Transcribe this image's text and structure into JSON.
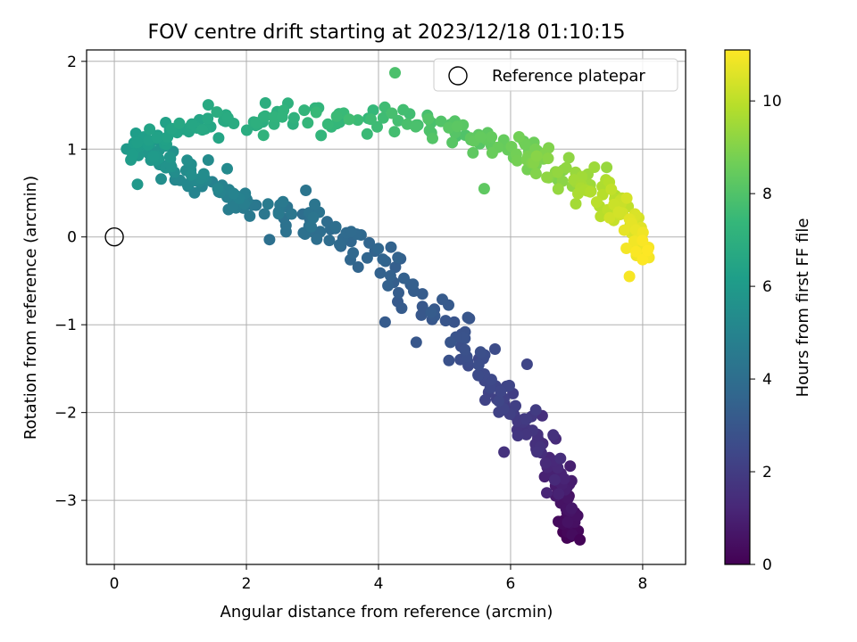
{
  "chart_data": {
    "type": "scatter",
    "title": "FOV centre drift starting at 2023/12/18 01:10:15",
    "xlabel": "Angular distance from reference (arcmin)",
    "ylabel": "Rotation from reference (arcmin)",
    "xlim": [
      -0.42,
      8.65
    ],
    "ylim": [
      -3.73,
      2.13
    ],
    "xticks": [
      0,
      2,
      4,
      6,
      8
    ],
    "xtick_labels": [
      "0",
      "2",
      "4",
      "6",
      "8"
    ],
    "yticks": [
      -3,
      -2,
      -1,
      0,
      1,
      2
    ],
    "ytick_labels": [
      "−3",
      "−2",
      "−1",
      "0",
      "1",
      "2"
    ],
    "grid": true,
    "legend": {
      "placement": "top-right",
      "entries": [
        "Reference platepar"
      ]
    },
    "reference_point": {
      "x": 0,
      "y": 0,
      "label": "Reference platepar"
    },
    "colorbar": {
      "label": "Hours from first FF file",
      "range": [
        0,
        11.1
      ],
      "ticks": [
        0,
        2,
        4,
        6,
        8,
        10
      ],
      "tick_labels": [
        "0",
        "2",
        "4",
        "6",
        "8",
        "10"
      ],
      "colormap": "viridis"
    },
    "colormap_stops": [
      "#440154",
      "#482878",
      "#3e4989",
      "#31688e",
      "#26828e",
      "#1f9e89",
      "#35b779",
      "#6ece58",
      "#b5de2b",
      "#fde725"
    ],
    "path": [
      {
        "h": 0.0,
        "x": 6.88,
        "y": -3.45,
        "sx": 0.1,
        "sy": 0.06
      },
      {
        "h": 0.6,
        "x": 6.9,
        "y": -3.05,
        "sx": 0.13,
        "sy": 0.18
      },
      {
        "h": 1.3,
        "x": 6.6,
        "y": -2.55,
        "sx": 0.18,
        "sy": 0.2
      },
      {
        "h": 2.0,
        "x": 6.1,
        "y": -2.0,
        "sx": 0.2,
        "sy": 0.15
      },
      {
        "h": 2.6,
        "x": 5.5,
        "y": -1.45,
        "sx": 0.24,
        "sy": 0.18
      },
      {
        "h": 3.2,
        "x": 4.7,
        "y": -0.7,
        "sx": 0.3,
        "sy": 0.2
      },
      {
        "h": 3.8,
        "x": 3.5,
        "y": 0.0,
        "sx": 0.3,
        "sy": 0.12
      },
      {
        "h": 4.4,
        "x": 2.5,
        "y": 0.3,
        "sx": 0.4,
        "sy": 0.12
      },
      {
        "h": 5.0,
        "x": 1.5,
        "y": 0.55,
        "sx": 0.35,
        "sy": 0.12
      },
      {
        "h": 5.6,
        "x": 0.8,
        "y": 0.85,
        "sx": 0.25,
        "sy": 0.12
      },
      {
        "h": 6.1,
        "x": 0.35,
        "y": 1.05,
        "sx": 0.2,
        "sy": 0.08
      },
      {
        "h": 6.6,
        "x": 1.3,
        "y": 1.3,
        "sx": 0.35,
        "sy": 0.15
      },
      {
        "h": 7.2,
        "x": 2.8,
        "y": 1.35,
        "sx": 0.4,
        "sy": 0.15
      },
      {
        "h": 7.8,
        "x": 4.4,
        "y": 1.3,
        "sx": 0.4,
        "sy": 0.15
      },
      {
        "h": 8.4,
        "x": 5.8,
        "y": 1.05,
        "sx": 0.35,
        "sy": 0.15
      },
      {
        "h": 9.0,
        "x": 6.6,
        "y": 0.8,
        "sx": 0.25,
        "sy": 0.18
      },
      {
        "h": 9.7,
        "x": 7.3,
        "y": 0.55,
        "sx": 0.25,
        "sy": 0.15
      },
      {
        "h": 10.4,
        "x": 7.8,
        "y": 0.25,
        "sx": 0.15,
        "sy": 0.18
      },
      {
        "h": 11.1,
        "x": 8.0,
        "y": -0.2,
        "sx": 0.15,
        "sy": 0.2
      }
    ],
    "points_count": 520,
    "extra_points": [
      {
        "x": 4.25,
        "y": 1.87,
        "h": 7.9
      },
      {
        "x": 5.6,
        "y": 0.55,
        "h": 8.3
      },
      {
        "x": 7.8,
        "y": -0.45,
        "h": 11.0
      },
      {
        "x": 5.9,
        "y": -2.45,
        "h": 1.6
      },
      {
        "x": 7.05,
        "y": -3.45,
        "h": 0.1
      },
      {
        "x": 6.25,
        "y": -1.45,
        "h": 2.3
      },
      {
        "x": 4.1,
        "y": -0.97,
        "h": 3.2
      },
      {
        "x": 2.35,
        "y": -0.03,
        "h": 4.1
      },
      {
        "x": 2.9,
        "y": 0.53,
        "h": 4.3
      },
      {
        "x": 0.35,
        "y": 0.6,
        "h": 5.9
      }
    ]
  }
}
